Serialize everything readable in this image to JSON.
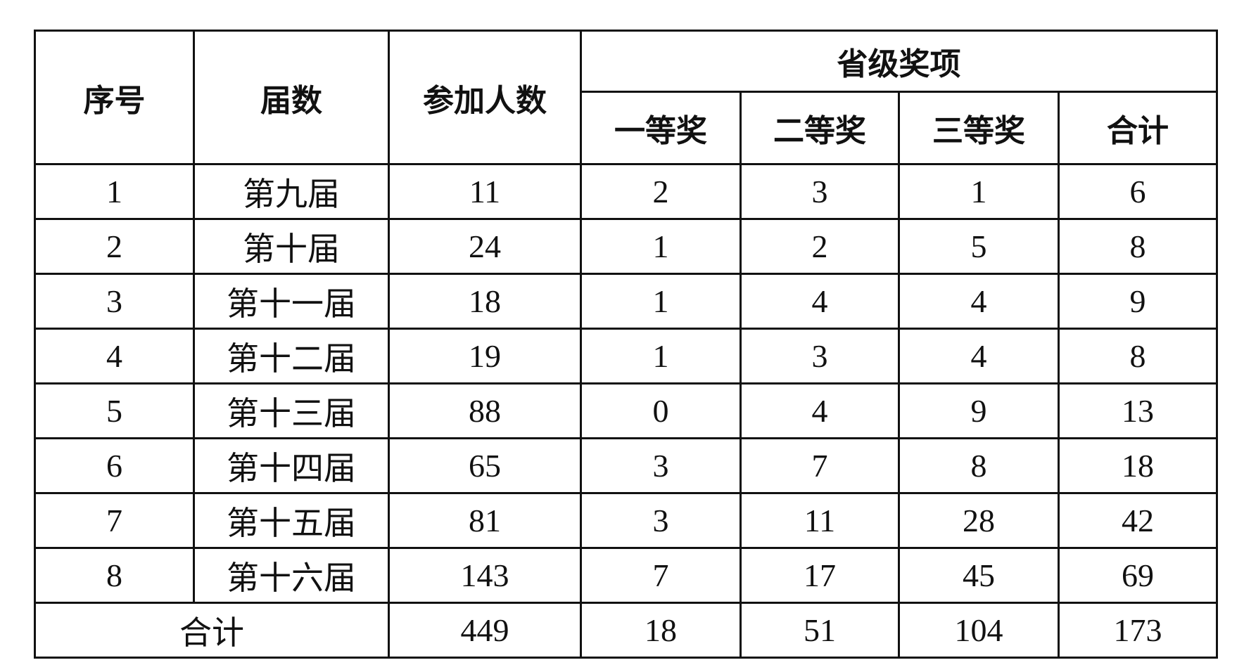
{
  "header": {
    "seq": "序号",
    "session": "届数",
    "participants": "参加人数",
    "provincial_awards": "省级奖项",
    "first": "一等奖",
    "second": "二等奖",
    "third": "三等奖",
    "total": "合计"
  },
  "rows": [
    {
      "seq": "1",
      "session": "第九届",
      "participants": "11",
      "first": "2",
      "second": "3",
      "third": "1",
      "total": "6"
    },
    {
      "seq": "2",
      "session": "第十届",
      "participants": "24",
      "first": "1",
      "second": "2",
      "third": "5",
      "total": "8"
    },
    {
      "seq": "3",
      "session": "第十一届",
      "participants": "18",
      "first": "1",
      "second": "4",
      "third": "4",
      "total": "9"
    },
    {
      "seq": "4",
      "session": "第十二届",
      "participants": "19",
      "first": "1",
      "second": "3",
      "third": "4",
      "total": "8"
    },
    {
      "seq": "5",
      "session": "第十三届",
      "participants": "88",
      "first": "0",
      "second": "4",
      "third": "9",
      "total": "13"
    },
    {
      "seq": "6",
      "session": "第十四届",
      "participants": "65",
      "first": "3",
      "second": "7",
      "third": "8",
      "total": "18"
    },
    {
      "seq": "7",
      "session": "第十五届",
      "participants": "81",
      "first": "3",
      "second": "11",
      "third": "28",
      "total": "42"
    },
    {
      "seq": "8",
      "session": "第十六届",
      "participants": "143",
      "first": "7",
      "second": "17",
      "third": "45",
      "total": "69"
    }
  ],
  "footer": {
    "label": "合计",
    "participants": "449",
    "first": "18",
    "second": "51",
    "third": "104",
    "total": "173"
  }
}
